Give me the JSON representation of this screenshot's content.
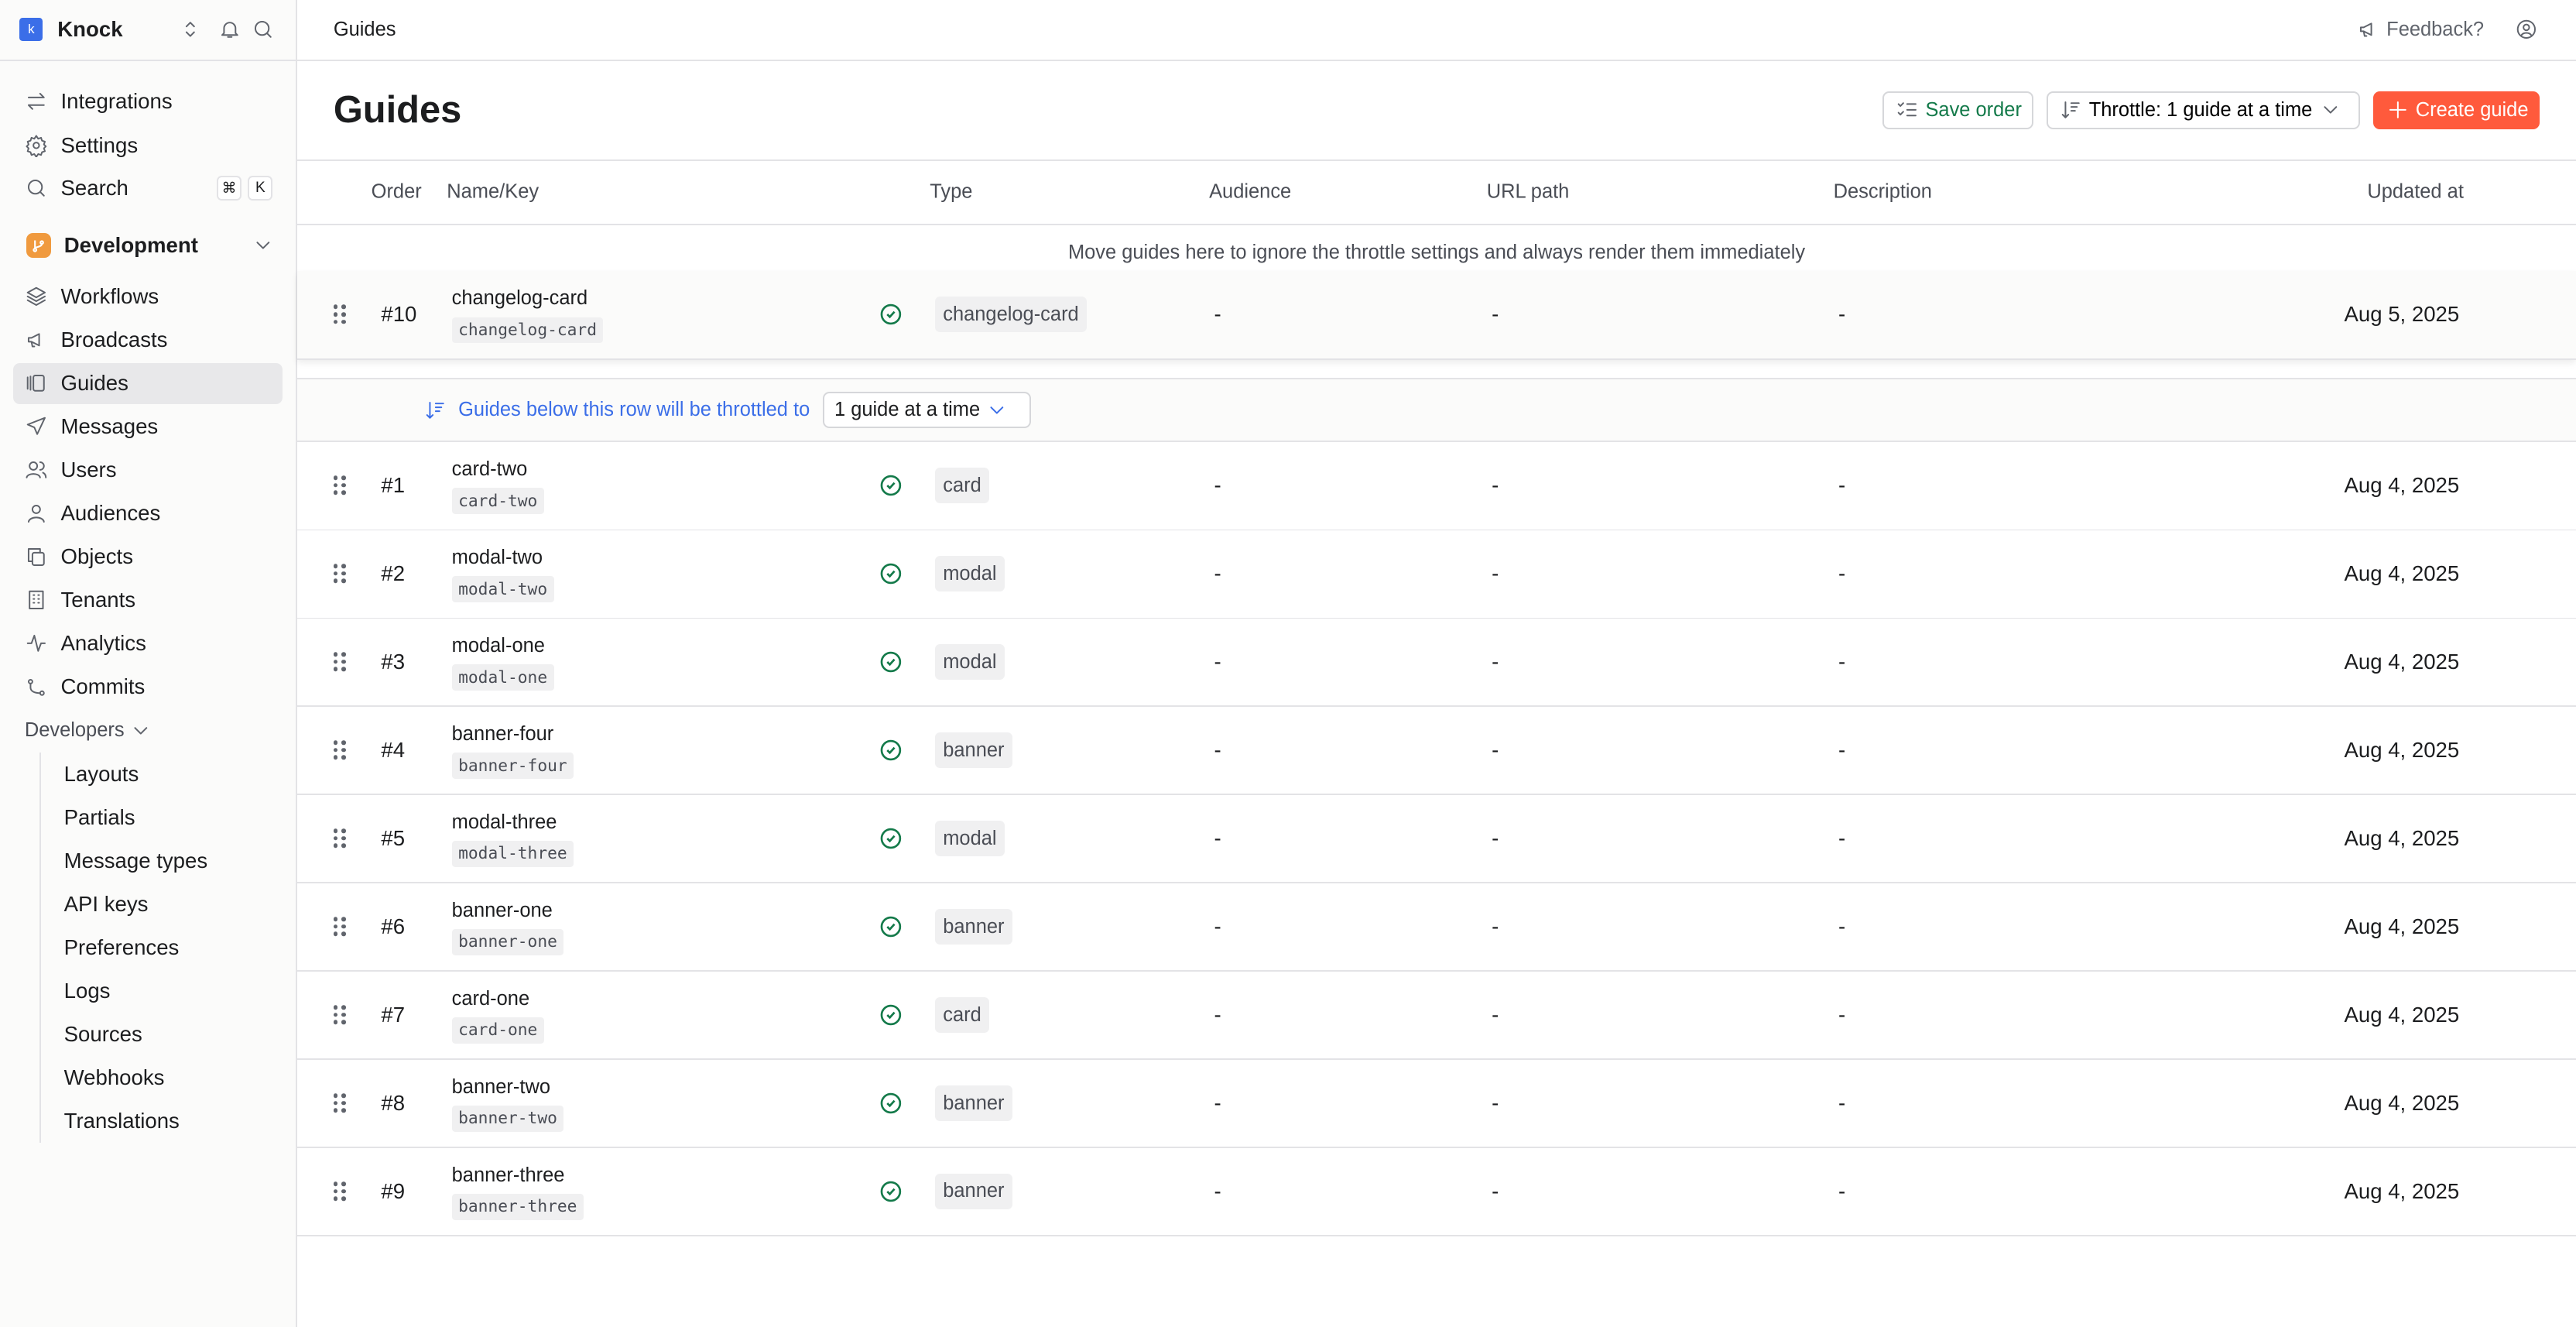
{
  "sidebar": {
    "org": "Knock",
    "logo_letter": "k",
    "top_items": [
      {
        "label": "Integrations",
        "icon": "arrows-swap-icon"
      },
      {
        "label": "Settings",
        "icon": "gear-icon"
      },
      {
        "label": "Search",
        "icon": "search-icon",
        "shortcut": [
          "⌘",
          "K"
        ]
      }
    ],
    "environment": "Development",
    "items": [
      {
        "label": "Workflows",
        "icon": "layers-icon"
      },
      {
        "label": "Broadcasts",
        "icon": "megaphone-icon"
      },
      {
        "label": "Guides",
        "icon": "guides-icon",
        "active": true
      },
      {
        "label": "Messages",
        "icon": "send-icon"
      },
      {
        "label": "Users",
        "icon": "users-icon"
      },
      {
        "label": "Audiences",
        "icon": "audience-icon"
      },
      {
        "label": "Objects",
        "icon": "copy-icon"
      },
      {
        "label": "Tenants",
        "icon": "building-icon"
      },
      {
        "label": "Analytics",
        "icon": "activity-icon"
      },
      {
        "label": "Commits",
        "icon": "git-commit-icon"
      }
    ],
    "developers_label": "Developers",
    "developer_items": [
      "Layouts",
      "Partials",
      "Message types",
      "API keys",
      "Preferences",
      "Logs",
      "Sources",
      "Webhooks",
      "Translations"
    ]
  },
  "topbar": {
    "breadcrumb": "Guides",
    "feedback": "Feedback?"
  },
  "header": {
    "title": "Guides",
    "save_order": "Save order",
    "throttle": "Throttle: 1 guide at a time",
    "create": "Create guide"
  },
  "columns": [
    "Order",
    "Name/Key",
    "Type",
    "Audience",
    "URL path",
    "Description",
    "Updated at"
  ],
  "pinned_note": "Move guides here to ignore the throttle settings and always render them immediately",
  "pinned": {
    "order": "#10",
    "name": "changelog-card",
    "key": "changelog-card",
    "type": "changelog-card",
    "audience": "-",
    "url": "-",
    "description": "-",
    "updated": "Aug 5, 2025"
  },
  "throttle_bar": {
    "text": "Guides below this row will be throttled to",
    "value": "1 guide at a time"
  },
  "rows": [
    {
      "order": "#1",
      "name": "card-two",
      "key": "card-two",
      "type": "card",
      "audience": "-",
      "url": "-",
      "description": "-",
      "updated": "Aug 4, 2025"
    },
    {
      "order": "#2",
      "name": "modal-two",
      "key": "modal-two",
      "type": "modal",
      "audience": "-",
      "url": "-",
      "description": "-",
      "updated": "Aug 4, 2025"
    },
    {
      "order": "#3",
      "name": "modal-one",
      "key": "modal-one",
      "type": "modal",
      "audience": "-",
      "url": "-",
      "description": "-",
      "updated": "Aug 4, 2025"
    },
    {
      "order": "#4",
      "name": "banner-four",
      "key": "banner-four",
      "type": "banner",
      "audience": "-",
      "url": "-",
      "description": "-",
      "updated": "Aug 4, 2025"
    },
    {
      "order": "#5",
      "name": "modal-three",
      "key": "modal-three",
      "type": "modal",
      "audience": "-",
      "url": "-",
      "description": "-",
      "updated": "Aug 4, 2025"
    },
    {
      "order": "#6",
      "name": "banner-one",
      "key": "banner-one",
      "type": "banner",
      "audience": "-",
      "url": "-",
      "description": "-",
      "updated": "Aug 4, 2025"
    },
    {
      "order": "#7",
      "name": "card-one",
      "key": "card-one",
      "type": "card",
      "audience": "-",
      "url": "-",
      "description": "-",
      "updated": "Aug 4, 2025"
    },
    {
      "order": "#8",
      "name": "banner-two",
      "key": "banner-two",
      "type": "banner",
      "audience": "-",
      "url": "-",
      "description": "-",
      "updated": "Aug 4, 2025"
    },
    {
      "order": "#9",
      "name": "banner-three",
      "key": "banner-three",
      "type": "banner",
      "audience": "-",
      "url": "-",
      "description": "-",
      "updated": "Aug 4, 2025"
    }
  ],
  "colors": {
    "accent": "#3b6ee8",
    "primary_button": "#ff5a3c",
    "success": "#147a4a",
    "environment": "#f09a3e"
  }
}
